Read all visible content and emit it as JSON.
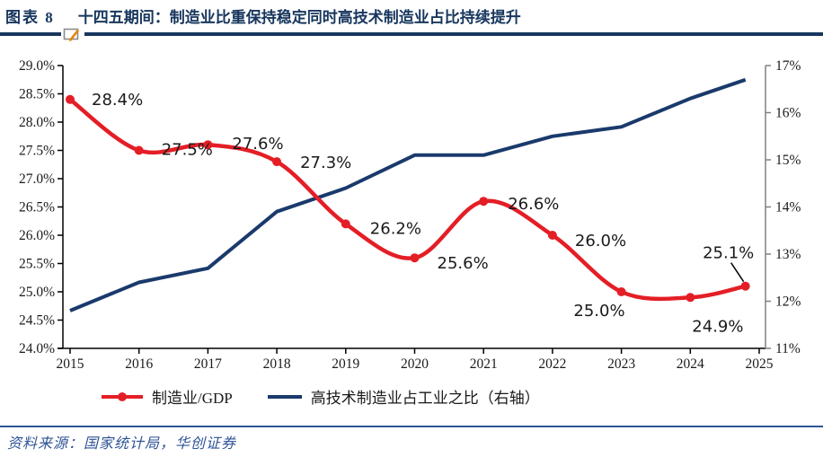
{
  "header": {
    "figure_label": "图表 8",
    "title": "十四五期间：制造业比重保持稳定同时高技术制造业占比持续提升"
  },
  "source_note": "资料来源：国家统计局，华创证券",
  "icons": {
    "note_icon": "annotation-pen-icon"
  },
  "colors": {
    "title_navy": "#17365d",
    "rule_navy": "#17365d",
    "red_series": "#e41e26",
    "navy_series": "#1a3a6c",
    "source_blue": "#2f5496",
    "axis_black": "#000000",
    "right_axis_gray": "#808080",
    "label_black": "#1a1a1a",
    "pen_orange": "#e98300"
  },
  "chart_data": {
    "type": "line",
    "x": [
      2015,
      2016,
      2017,
      2018,
      2019,
      2020,
      2021,
      2022,
      2023,
      2024,
      2024.8
    ],
    "x_tick_labels": [
      "2015",
      "2016",
      "2017",
      "2018",
      "2019",
      "2020",
      "2021",
      "2022",
      "2023",
      "2024",
      "2025"
    ],
    "series": [
      {
        "name": "制造业/GDP",
        "axis": "left",
        "color": "#e41e26",
        "marker": "circle",
        "smooth": true,
        "values": [
          28.4,
          27.5,
          27.6,
          27.3,
          26.2,
          25.6,
          26.6,
          26.0,
          25.0,
          24.9,
          25.1
        ],
        "data_labels": [
          "28.4%",
          "27.5%",
          "27.6%",
          "27.3%",
          "26.2%",
          "25.6%",
          "26.6%",
          "26.0%",
          "25.0%",
          "24.9%",
          "25.1%"
        ]
      },
      {
        "name": "高技术制造业占工业之比（右轴）",
        "axis": "right",
        "color": "#1a3a6c",
        "marker": "none",
        "smooth": false,
        "values": [
          11.8,
          12.4,
          12.7,
          13.9,
          14.4,
          15.1,
          15.1,
          15.5,
          15.7,
          16.3,
          16.7
        ],
        "data_labels": []
      }
    ],
    "left_axis": {
      "min": 24.0,
      "max": 29.0,
      "step": 0.5,
      "tick_labels": [
        "29.0%",
        "28.5%",
        "28.0%",
        "27.5%",
        "27.0%",
        "26.5%",
        "26.0%",
        "25.5%",
        "25.0%",
        "24.5%",
        "24.0%"
      ]
    },
    "right_axis": {
      "min": 11,
      "max": 17,
      "step": 1,
      "tick_labels": [
        "17%",
        "16%",
        "15%",
        "14%",
        "13%",
        "12%",
        "11%"
      ]
    },
    "grid": false,
    "legend_position": "bottom"
  }
}
